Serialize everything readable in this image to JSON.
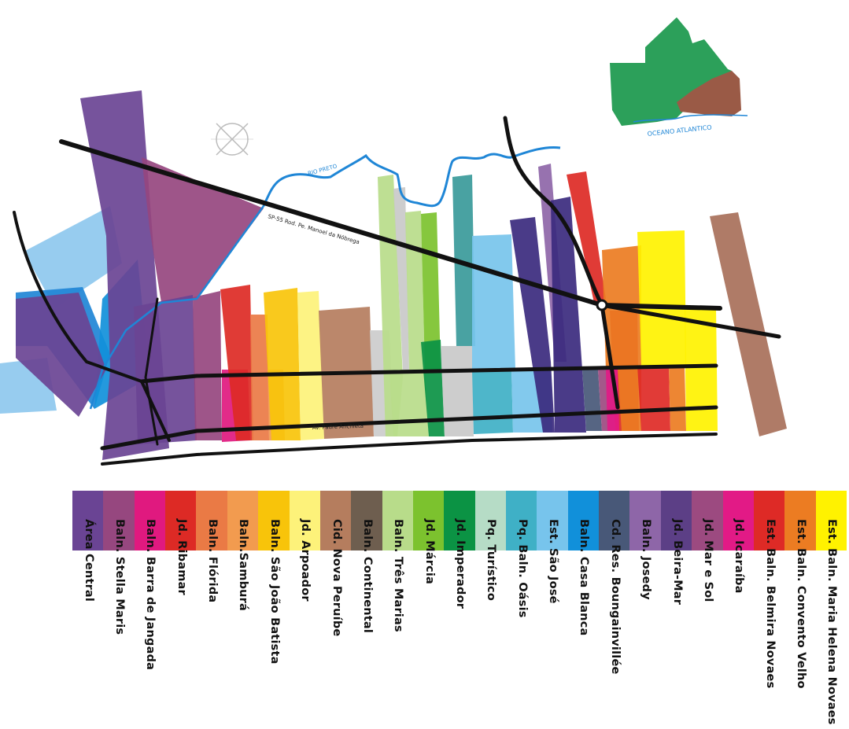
{
  "map": {
    "labels": {
      "river": "RIO PRETO",
      "highway": "SP-55 Rod. Pe. Manoel da Nóbrega",
      "avenue": "Av. Padre Anchieta",
      "ocean": "OCEANO ATLANTICO"
    },
    "colors": {
      "road": "#111111",
      "river": "#1f86d6",
      "inset_green": "#2ca05a",
      "inset_brown": "#9a5a46"
    }
  },
  "legend": {
    "items": [
      {
        "label": "Área Central",
        "color": "#6a4494"
      },
      {
        "label": "Baln. Stella Maris",
        "color": "#96477f"
      },
      {
        "label": "Baln. Barra de Jangada",
        "color": "#e0197f"
      },
      {
        "label": "Jd. Ribamar",
        "color": "#dd2a25"
      },
      {
        "label": "Baln. Flórida",
        "color": "#ea7a45"
      },
      {
        "label": "Baln.Samburá",
        "color": "#f29b4f"
      },
      {
        "label": "Baln. São João Batista",
        "color": "#f8c40a"
      },
      {
        "label": "Jd. Arpoador",
        "color": "#fdf27a"
      },
      {
        "label": "Cid. Nova Peruíbe",
        "color": "#b57d5e"
      },
      {
        "label": "Baln. Continental",
        "color": "#6e5e4f"
      },
      {
        "label": "Baln. Três Marias",
        "color": "#b8dc8a"
      },
      {
        "label": "Jd. Márcia",
        "color": "#7cc22e"
      },
      {
        "label": "Jd. Imperador",
        "color": "#0b9344"
      },
      {
        "label": "Pq. Turístico",
        "color": "#b6dcc6"
      },
      {
        "label": "Pq. Baln. Oásis",
        "color": "#3fb0c6"
      },
      {
        "label": "Est. São José",
        "color": "#77c4ec"
      },
      {
        "label": "Baln. Casa Blanca",
        "color": "#1190da"
      },
      {
        "label": "Cd. Res. Boungainvillée",
        "color": "#485878"
      },
      {
        "label": "Baln. Josedy",
        "color": "#8e66a8"
      },
      {
        "label": "Jd. Beira-Mar",
        "color": "#5c3f86"
      },
      {
        "label": "Jd. Mar e Sol",
        "color": "#9c4a80"
      },
      {
        "label": "Jd. Icaraíba",
        "color": "#e21a86"
      },
      {
        "label": "Est. Baln. Belmira Novaes",
        "color": "#de2a26"
      },
      {
        "label": "Est. Baln. Convento Velho",
        "color": "#ec7c22"
      },
      {
        "label": "Est. Baln. Maria Helena Novaes",
        "color": "#fff200"
      }
    ]
  }
}
